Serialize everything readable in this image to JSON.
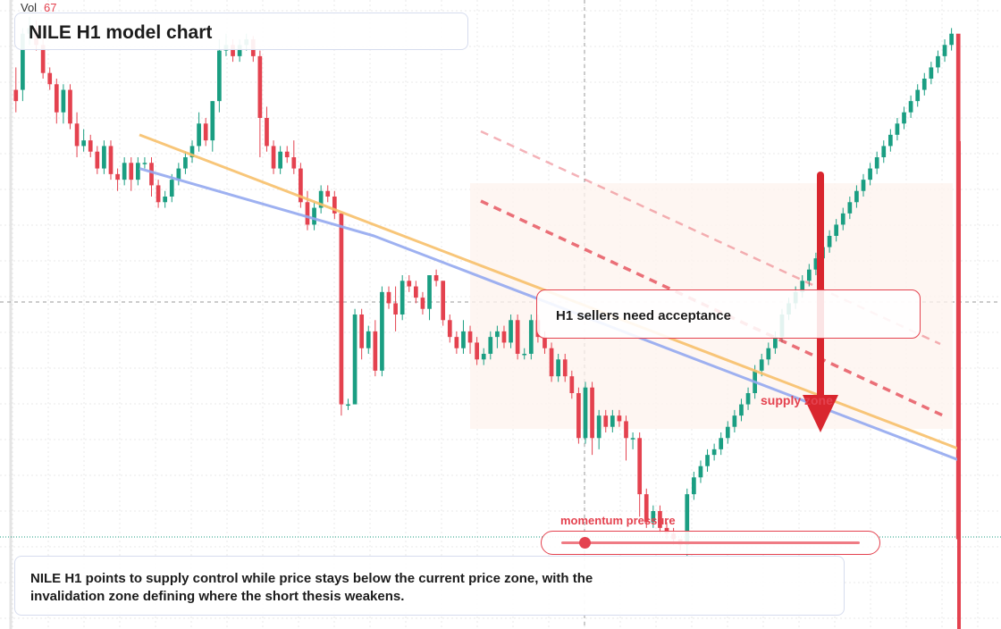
{
  "header": {
    "title": "NILE H1 model chart",
    "vol_label": "Vol",
    "vol_value": "67"
  },
  "callout": {
    "text": "H1 sellers need acceptance"
  },
  "supply_label": "supply zone",
  "momentum": {
    "label": "momentum pressure",
    "level": 0.05
  },
  "note": {
    "text": "NILE H1 points to supply control while price stays below the current price zone, with the invalidation zone defining where the short thesis weakens."
  },
  "colors": {
    "up": "#1a9e82",
    "down": "#e4424f",
    "ma_fast": "#f7c06a",
    "ma_slow": "#93a9f0",
    "accent": "#e4424f",
    "zone_fill": "#fdf3ee"
  },
  "chart_data": {
    "type": "candlestick",
    "title": "NILE H1 model chart",
    "price_domain": [
      -320,
      240
    ],
    "series": [
      {
        "name": "candles",
        "ohlc": [
          [
            160,
            150,
            180,
            140
          ],
          [
            160,
            210,
            215,
            150
          ],
          [
            210,
            215,
            225,
            200
          ],
          [
            215,
            200,
            222,
            195
          ],
          [
            200,
            175,
            205,
            170
          ],
          [
            175,
            165,
            180,
            160
          ],
          [
            165,
            140,
            170,
            130
          ],
          [
            140,
            160,
            165,
            130
          ],
          [
            160,
            130,
            165,
            125
          ],
          [
            130,
            110,
            140,
            100
          ],
          [
            110,
            115,
            125,
            105
          ],
          [
            115,
            105,
            120,
            100
          ],
          [
            105,
            90,
            110,
            85
          ],
          [
            90,
            110,
            115,
            85
          ],
          [
            110,
            85,
            115,
            80
          ],
          [
            85,
            80,
            90,
            70
          ],
          [
            80,
            95,
            100,
            75
          ],
          [
            95,
            80,
            100,
            70
          ],
          [
            80,
            95,
            100,
            75
          ],
          [
            95,
            95,
            100,
            90
          ],
          [
            95,
            75,
            100,
            65
          ],
          [
            75,
            60,
            80,
            55
          ],
          [
            60,
            65,
            70,
            55
          ],
          [
            65,
            80,
            85,
            60
          ],
          [
            80,
            90,
            95,
            75
          ],
          [
            90,
            100,
            105,
            85
          ],
          [
            100,
            110,
            115,
            95
          ],
          [
            110,
            130,
            140,
            105
          ],
          [
            130,
            115,
            135,
            110
          ],
          [
            115,
            150,
            150,
            105
          ],
          [
            150,
            195,
            205,
            140
          ],
          [
            195,
            200,
            210,
            190
          ],
          [
            200,
            190,
            205,
            185
          ],
          [
            190,
            200,
            205,
            185
          ],
          [
            200,
            205,
            210,
            195
          ],
          [
            205,
            190,
            208,
            185
          ],
          [
            190,
            135,
            195,
            100
          ],
          [
            135,
            110,
            145,
            105
          ],
          [
            110,
            90,
            115,
            85
          ],
          [
            90,
            105,
            110,
            85
          ],
          [
            105,
            100,
            110,
            95
          ],
          [
            100,
            90,
            115,
            85
          ],
          [
            90,
            60,
            95,
            55
          ],
          [
            60,
            40,
            70,
            35
          ],
          [
            40,
            55,
            60,
            35
          ],
          [
            55,
            70,
            75,
            50
          ],
          [
            70,
            65,
            75,
            60
          ],
          [
            65,
            50,
            70,
            45
          ],
          [
            50,
            -120,
            -110,
            -130
          ],
          [
            -120,
            -120,
            -115,
            -125
          ],
          [
            -120,
            -40,
            -35,
            -60
          ],
          [
            -40,
            -70,
            -35,
            -80
          ],
          [
            -70,
            -55,
            -50,
            -75
          ],
          [
            -55,
            -90,
            -45,
            -95
          ],
          [
            -90,
            -20,
            -15,
            -95
          ],
          [
            -20,
            -30,
            -15,
            -35
          ],
          [
            -30,
            -40,
            -15,
            -55
          ],
          [
            -40,
            -10,
            -5,
            -45
          ],
          [
            -10,
            -15,
            -5,
            -20
          ],
          [
            -15,
            -25,
            -10,
            -30
          ],
          [
            -25,
            -35,
            -20,
            -40
          ],
          [
            -35,
            -5,
            -10,
            -45
          ],
          [
            -5,
            -10,
            0,
            -15
          ],
          [
            -10,
            -45,
            -10,
            -50
          ],
          [
            -45,
            -60,
            -40,
            -65
          ],
          [
            -60,
            -70,
            -55,
            -75
          ],
          [
            -70,
            -55,
            -45,
            -75
          ],
          [
            -55,
            -65,
            -50,
            -75
          ],
          [
            -65,
            -80,
            -60,
            -85
          ],
          [
            -80,
            -75,
            -70,
            -85
          ],
          [
            -75,
            -60,
            -55,
            -80
          ],
          [
            -60,
            -55,
            -50,
            -70
          ],
          [
            -55,
            -65,
            -50,
            -70
          ],
          [
            -65,
            -45,
            -40,
            -70
          ],
          [
            -45,
            -75,
            -40,
            -80
          ],
          [
            -75,
            -75,
            -70,
            -80
          ],
          [
            -75,
            -45,
            -40,
            -80
          ],
          [
            -45,
            -60,
            -40,
            -65
          ],
          [
            -60,
            -70,
            -55,
            -75
          ],
          [
            -70,
            -95,
            -65,
            -100
          ],
          [
            -95,
            -80,
            -75,
            -100
          ],
          [
            -80,
            -95,
            -75,
            -100
          ],
          [
            -95,
            -110,
            -90,
            -115
          ],
          [
            -110,
            -150,
            -105,
            -155
          ],
          [
            -150,
            -105,
            -100,
            -155
          ],
          [
            -105,
            -150,
            -100,
            -165
          ],
          [
            -150,
            -130,
            -125,
            -160
          ],
          [
            -130,
            -140,
            -125,
            -145
          ],
          [
            -140,
            -130,
            -125,
            -145
          ],
          [
            -130,
            -135,
            -125,
            -140
          ],
          [
            -135,
            -150,
            -130,
            -170
          ],
          [
            -150,
            -150,
            -145,
            -160
          ],
          [
            -150,
            -200,
            -145,
            -220
          ],
          [
            -200,
            -225,
            -195,
            -230
          ],
          [
            -225,
            -215,
            -210,
            -230
          ],
          [
            -215,
            -230,
            -210,
            -235
          ],
          [
            -230,
            -235,
            -225,
            -240
          ],
          [
            -235,
            -240,
            -230,
            -245
          ],
          [
            -240,
            -245,
            -240,
            -250
          ],
          [
            -245,
            -200,
            -195,
            -255
          ],
          [
            -200,
            -185,
            -180,
            -205
          ],
          [
            -185,
            -175,
            -170,
            -190
          ],
          [
            -175,
            -165,
            -160,
            -180
          ],
          [
            -165,
            -160,
            -155,
            -170
          ],
          [
            -160,
            -150,
            -145,
            -165
          ],
          [
            -150,
            -140,
            -135,
            -155
          ],
          [
            -140,
            -130,
            -125,
            -145
          ],
          [
            -130,
            -120,
            -115,
            -135
          ],
          [
            -120,
            -110,
            -105,
            -125
          ],
          [
            -110,
            -90,
            -85,
            -115
          ],
          [
            -90,
            -80,
            -75,
            -95
          ],
          [
            -80,
            -70,
            -65,
            -85
          ],
          [
            -70,
            -60,
            -55,
            -75
          ],
          [
            -60,
            -40,
            -35,
            -65
          ],
          [
            -40,
            -30,
            -25,
            -45
          ],
          [
            -30,
            -20,
            -15,
            -35
          ],
          [
            -20,
            -10,
            -5,
            -25
          ],
          [
            -10,
            0,
            5,
            -15
          ],
          [
            0,
            10,
            15,
            -5
          ],
          [
            10,
            20,
            25,
            5
          ],
          [
            20,
            30,
            35,
            15
          ],
          [
            30,
            40,
            45,
            25
          ],
          [
            40,
            50,
            55,
            35
          ],
          [
            50,
            60,
            65,
            45
          ],
          [
            60,
            70,
            75,
            55
          ],
          [
            70,
            80,
            85,
            65
          ],
          [
            80,
            90,
            95,
            75
          ],
          [
            90,
            100,
            105,
            85
          ],
          [
            100,
            110,
            115,
            95
          ],
          [
            110,
            120,
            125,
            105
          ],
          [
            120,
            130,
            135,
            115
          ],
          [
            130,
            140,
            145,
            125
          ],
          [
            140,
            150,
            155,
            135
          ],
          [
            150,
            160,
            165,
            145
          ],
          [
            160,
            170,
            175,
            155
          ],
          [
            170,
            180,
            185,
            165
          ],
          [
            180,
            190,
            195,
            175
          ],
          [
            190,
            200,
            205,
            185
          ],
          [
            200,
            210,
            215,
            195
          ],
          [
            210,
            -240,
            -230,
            -310
          ]
        ]
      },
      {
        "name": "",
        "values": [
          120,
          80,
          40,
          0,
          -40,
          -80,
          -120,
          -160
        ]
      },
      {
        "name": "",
        "values": [
          90,
          60,
          30,
          -10,
          -50,
          -90,
          -130,
          -170
        ]
      }
    ],
    "annotations": [
      "H1 sellers need acceptance",
      "supply zone",
      "momentum pressure"
    ],
    "grid": true
  }
}
